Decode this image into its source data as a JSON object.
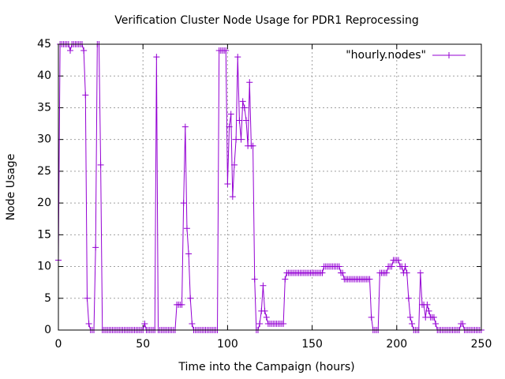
{
  "chart_data": {
    "type": "line",
    "title": "Verification Cluster Node Usage for PDR1 Reprocessing",
    "x_label": "Time into the Campaign (hours)",
    "y_label": "Node Usage",
    "x": [
      0,
      1,
      2,
      3,
      4,
      5,
      6,
      7,
      8,
      9,
      10,
      11,
      12,
      13,
      14,
      15,
      16,
      17,
      18,
      19,
      20,
      21,
      22,
      23,
      24,
      25,
      26,
      27,
      28,
      29,
      30,
      31,
      32,
      33,
      34,
      35,
      36,
      37,
      38,
      39,
      40,
      41,
      42,
      43,
      44,
      45,
      46,
      47,
      48,
      49,
      50,
      51,
      52,
      53,
      54,
      55,
      56,
      57,
      58,
      59,
      60,
      61,
      62,
      63,
      64,
      65,
      66,
      67,
      68,
      69,
      70,
      71,
      72,
      73,
      74,
      75,
      76,
      77,
      78,
      79,
      80,
      81,
      82,
      83,
      84,
      85,
      86,
      87,
      88,
      89,
      90,
      91,
      92,
      93,
      94,
      95,
      96,
      97,
      98,
      99,
      100,
      101,
      102,
      103,
      104,
      105,
      106,
      107,
      108,
      109,
      110,
      111,
      112,
      113,
      114,
      115,
      116,
      117,
      118,
      119,
      120,
      121,
      122,
      123,
      124,
      125,
      126,
      127,
      128,
      129,
      130,
      131,
      132,
      133,
      134,
      135,
      136,
      137,
      138,
      139,
      140,
      141,
      142,
      143,
      144,
      145,
      146,
      147,
      148,
      149,
      150,
      151,
      152,
      153,
      154,
      155,
      156,
      157,
      158,
      159,
      160,
      161,
      162,
      163,
      164,
      165,
      166,
      167,
      168,
      169,
      170,
      171,
      172,
      173,
      174,
      175,
      176,
      177,
      178,
      179,
      180,
      181,
      182,
      183,
      184,
      185,
      186,
      187,
      188,
      189,
      190,
      191,
      192,
      193,
      194,
      195,
      196,
      197,
      198,
      199,
      200,
      201,
      202,
      203,
      204,
      205,
      206,
      207,
      208,
      209,
      210,
      211,
      212,
      213,
      214,
      215,
      216,
      217,
      218,
      219,
      220,
      221,
      222,
      223,
      224,
      225,
      226,
      227,
      228,
      229,
      230,
      231,
      232,
      233,
      234,
      235,
      236,
      237,
      238,
      239,
      240,
      241,
      242,
      243,
      244,
      245,
      246,
      247,
      248,
      249,
      250
    ],
    "series": [
      {
        "name": "\"hourly.nodes\"",
        "color": "#9400d3",
        "values": [
          11,
          45,
          45,
          45,
          45,
          45,
          45,
          44,
          45,
          45,
          45,
          45,
          45,
          45,
          45,
          44,
          37,
          5,
          1,
          0,
          0,
          0,
          13,
          45,
          45,
          26,
          0,
          0,
          0,
          0,
          0,
          0,
          0,
          0,
          0,
          0,
          0,
          0,
          0,
          0,
          0,
          0,
          0,
          0,
          0,
          0,
          0,
          0,
          0,
          0,
          0,
          1,
          0,
          0,
          0,
          0,
          0,
          0,
          43,
          0,
          0,
          0,
          0,
          0,
          0,
          0,
          0,
          0,
          0,
          0,
          4,
          4,
          4,
          4,
          20,
          32,
          16,
          12,
          5,
          1,
          0,
          0,
          0,
          0,
          0,
          0,
          0,
          0,
          0,
          0,
          0,
          0,
          0,
          0,
          0,
          44,
          44,
          44,
          44,
          44,
          23,
          32,
          34,
          21,
          26,
          30,
          43,
          33,
          30,
          36,
          35,
          33,
          29,
          39,
          29,
          29,
          8,
          0,
          0,
          1,
          3,
          7,
          3,
          2,
          1,
          1,
          1,
          1,
          1,
          1,
          1,
          1,
          1,
          1,
          8,
          9,
          9,
          9,
          9,
          9,
          9,
          9,
          9,
          9,
          9,
          9,
          9,
          9,
          9,
          9,
          9,
          9,
          9,
          9,
          9,
          9,
          9,
          10,
          10,
          10,
          10,
          10,
          10,
          10,
          10,
          10,
          10,
          9,
          9,
          8,
          8,
          8,
          8,
          8,
          8,
          8,
          8,
          8,
          8,
          8,
          8,
          8,
          8,
          8,
          8,
          2,
          0,
          0,
          0,
          0,
          9,
          9,
          9,
          9,
          9,
          10,
          10,
          10,
          11,
          11,
          11,
          11,
          10,
          10,
          9,
          10,
          9,
          5,
          2,
          1,
          0,
          0,
          0,
          0,
          9,
          4,
          4,
          2,
          4,
          3,
          2,
          2,
          2,
          1,
          0,
          0,
          0,
          0,
          0,
          0,
          0,
          0,
          0,
          0,
          0,
          0,
          0,
          0,
          1,
          1,
          0,
          0,
          0,
          0,
          0,
          0,
          0,
          0,
          0,
          0,
          0
        ]
      }
    ],
    "xlim": [
      0,
      250
    ],
    "xticks": [
      0,
      50,
      100,
      150,
      200,
      250
    ],
    "ylim": [
      0,
      45
    ],
    "yticks": [
      0,
      5,
      10,
      15,
      20,
      25,
      30,
      35,
      40,
      45
    ],
    "grid": true,
    "legend": "top-right"
  }
}
